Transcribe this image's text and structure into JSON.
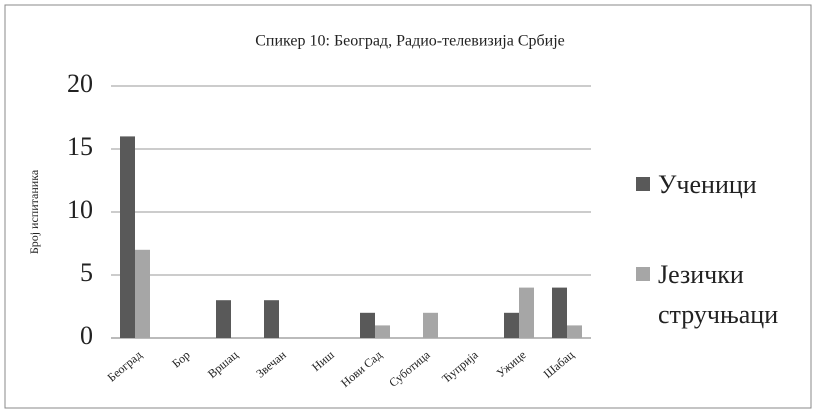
{
  "chart_data": {
    "type": "bar",
    "title": "Спикер 10: Београд, Радио-телевизија Србије",
    "y_label": "Број испитаника",
    "categories": [
      "Београд",
      "Бор",
      "Вршац",
      "Звечан",
      "Ниш",
      "Нови Сад",
      "Суботица",
      "Ћуприја",
      "Ужице",
      "Шабац"
    ],
    "series": [
      {
        "name": "Ученици",
        "color": "#595959",
        "values": [
          16,
          0,
          3,
          3,
          0,
          2,
          0,
          0,
          2,
          4
        ]
      },
      {
        "name": "Језички стручњаци",
        "color": "#a6a6a6",
        "values": [
          7,
          0,
          0,
          0,
          0,
          1,
          2,
          0,
          4,
          1
        ]
      }
    ],
    "ylim": [
      0,
      20
    ],
    "yticks": [
      0,
      5,
      10,
      15,
      20
    ],
    "grid": true,
    "legend": "right"
  }
}
